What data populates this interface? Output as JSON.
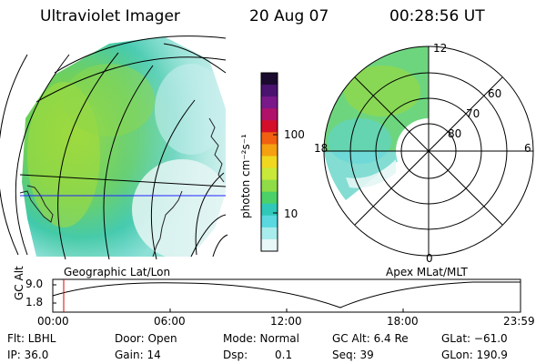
{
  "header": {
    "instrument": "Ultraviolet Imager",
    "date": "20 Aug 07",
    "time": "00:28:56 UT"
  },
  "colorbar": {
    "unit_label": "photon cm⁻²s⁻¹",
    "tick_labels": [
      "100",
      "10"
    ],
    "ticks": [
      100,
      10
    ],
    "colors_top_to_bottom": [
      "#1a0a2e",
      "#4a1370",
      "#7a1a8a",
      "#b0126a",
      "#d40f2a",
      "#f06010",
      "#f4a010",
      "#f0d820",
      "#c8e83a",
      "#8fdc46",
      "#4cd068",
      "#30c8b8",
      "#5ad8e0",
      "#a8ecec",
      "#e8f8f8"
    ]
  },
  "left_map": {
    "projection_label": "Geographic Lat/Lon"
  },
  "right_dial": {
    "projection_label": "Apex MLat/MLT",
    "mlt_labels": {
      "top": "12",
      "left": "18",
      "right": "6",
      "bottom": "0"
    },
    "mlat_labels": [
      "60",
      "70",
      "80"
    ]
  },
  "altitude_plot": {
    "ylabel": "GC Alt",
    "y_ticks": [
      "9.0",
      "1.8"
    ],
    "x_ticks": [
      "00:00",
      "06:00",
      "12:00",
      "18:00",
      "23:59"
    ],
    "current_time_marker_color": "#e00000"
  },
  "info": {
    "flt": "Flt: LBHL",
    "door": "Door: Open",
    "mode": "Mode: Normal",
    "gc_alt": "GC Alt: 6.4 Re",
    "glat": "GLat: −61.0",
    "ip": "IP: 36.0",
    "gain": "Gain: 14",
    "dsp_label": "Dsp:",
    "dsp_value": "0.1",
    "seq": "Seq: 39",
    "glon": "GLon: 190.9"
  }
}
